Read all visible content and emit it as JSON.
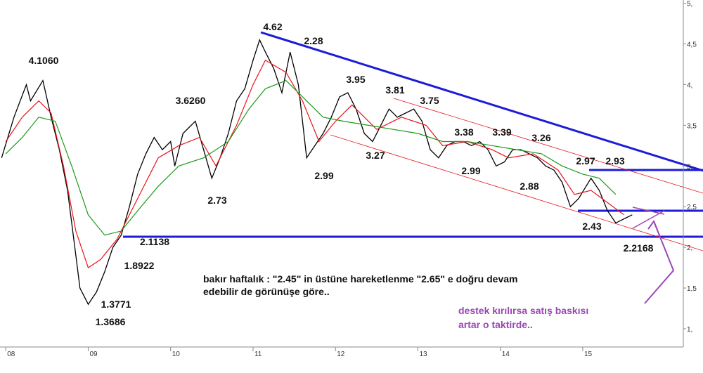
{
  "chart_data": {
    "type": "line",
    "xlim": [
      2007.93,
      2016.22
    ],
    "xticks": [
      {
        "value": 2008,
        "label": "08"
      },
      {
        "value": 2009,
        "label": "09"
      },
      {
        "value": 2010,
        "label": "10"
      },
      {
        "value": 2011,
        "label": "11"
      },
      {
        "value": 2012,
        "label": "12"
      },
      {
        "value": 2013,
        "label": "13"
      },
      {
        "value": 2014,
        "label": "14"
      },
      {
        "value": 2015,
        "label": "15"
      }
    ],
    "ylim": [
      0.775,
      5.04
    ],
    "yticks": [
      {
        "value": 1,
        "label": "1,"
      },
      {
        "value": 1.5,
        "label": "1,5"
      },
      {
        "value": 2,
        "label": "2,"
      },
      {
        "value": 2.5,
        "label": "2,5"
      },
      {
        "value": 3,
        "label": "3,"
      },
      {
        "value": 3.5,
        "label": "3,5"
      },
      {
        "value": 4,
        "label": "4,"
      },
      {
        "value": 4.5,
        "label": "4,5"
      },
      {
        "value": 5,
        "label": "5,"
      }
    ],
    "series": [
      {
        "color": "#000000",
        "x": [
          2007.95,
          2008.1,
          2008.25,
          2008.3,
          2008.45,
          2008.55,
          2008.65,
          2008.75,
          2008.85,
          2008.9,
          2008.95,
          2009.0,
          2009.1,
          2009.2,
          2009.3,
          2009.4,
          2009.5,
          2009.6,
          2009.7,
          2009.8,
          2009.9,
          2010.0,
          2010.05,
          2010.15,
          2010.3,
          2010.4,
          2010.5,
          2010.6,
          2010.7,
          2010.8,
          2010.9,
          2011.0,
          2011.08,
          2011.15,
          2011.25,
          2011.35,
          2011.45,
          2011.55,
          2011.65,
          2011.75,
          2011.85,
          2011.95,
          2012.05,
          2012.15,
          2012.25,
          2012.35,
          2012.45,
          2012.55,
          2012.65,
          2012.75,
          2012.85,
          2012.95,
          2013.05,
          2013.15,
          2013.25,
          2013.35,
          2013.45,
          2013.55,
          2013.65,
          2013.75,
          2013.85,
          2013.95,
          2014.05,
          2014.15,
          2014.25,
          2014.35,
          2014.45,
          2014.55,
          2014.65,
          2014.75,
          2014.85,
          2014.95,
          2015.1,
          2015.2,
          2015.3,
          2015.4,
          2015.5,
          2015.6
        ],
        "values": [
          3.1,
          3.6,
          4.0,
          3.8,
          4.05,
          3.6,
          3.2,
          2.7,
          1.9,
          1.5,
          1.4,
          1.3,
          1.45,
          1.7,
          2.0,
          2.15,
          2.5,
          2.9,
          3.15,
          3.35,
          3.2,
          3.3,
          3.0,
          3.4,
          3.55,
          3.2,
          2.85,
          3.1,
          3.4,
          3.8,
          3.95,
          4.3,
          4.55,
          4.4,
          4.2,
          3.9,
          4.4,
          4.0,
          3.1,
          3.25,
          3.4,
          3.6,
          3.85,
          3.9,
          3.7,
          3.4,
          3.3,
          3.5,
          3.7,
          3.6,
          3.65,
          3.7,
          3.55,
          3.2,
          3.1,
          3.25,
          3.3,
          3.3,
          3.25,
          3.3,
          3.2,
          3.0,
          3.05,
          3.2,
          3.2,
          3.15,
          3.1,
          3.0,
          2.95,
          2.8,
          2.5,
          2.6,
          2.85,
          2.7,
          2.45,
          2.3,
          2.35,
          2.4
        ]
      },
      {
        "color": "#e8141b",
        "x": [
          2008.0,
          2008.2,
          2008.4,
          2008.55,
          2008.7,
          2008.85,
          2009.0,
          2009.15,
          2009.35,
          2009.6,
          2009.85,
          2010.1,
          2010.35,
          2010.55,
          2010.8,
          2011.0,
          2011.15,
          2011.4,
          2011.6,
          2011.8,
          2012.0,
          2012.2,
          2012.5,
          2012.8,
          2013.1,
          2013.3,
          2013.6,
          2013.9,
          2014.1,
          2014.4,
          2014.7,
          2014.9,
          2015.1,
          2015.3,
          2015.5
        ],
        "values": [
          3.3,
          3.6,
          3.8,
          3.65,
          3.0,
          2.2,
          1.75,
          1.85,
          2.1,
          2.6,
          3.1,
          3.25,
          3.35,
          3.0,
          3.5,
          4.0,
          4.3,
          4.15,
          3.8,
          3.3,
          3.55,
          3.75,
          3.45,
          3.6,
          3.5,
          3.25,
          3.3,
          3.2,
          3.1,
          3.15,
          2.95,
          2.65,
          2.7,
          2.55,
          2.4
        ]
      },
      {
        "color": "#1a9a1a",
        "x": [
          2008.0,
          2008.2,
          2008.4,
          2008.6,
          2008.8,
          2009.0,
          2009.2,
          2009.4,
          2009.6,
          2009.85,
          2010.1,
          2010.4,
          2010.7,
          2010.95,
          2011.15,
          2011.4,
          2011.6,
          2011.85,
          2012.1,
          2012.4,
          2012.7,
          2013.0,
          2013.3,
          2013.6,
          2013.9,
          2014.2,
          2014.5,
          2014.75,
          2015.0,
          2015.2,
          2015.4
        ],
        "values": [
          3.15,
          3.35,
          3.6,
          3.55,
          3.0,
          2.4,
          2.15,
          2.2,
          2.45,
          2.75,
          3.0,
          3.1,
          3.3,
          3.7,
          3.95,
          4.05,
          3.85,
          3.6,
          3.55,
          3.5,
          3.45,
          3.4,
          3.3,
          3.3,
          3.25,
          3.2,
          3.15,
          3.0,
          2.9,
          2.85,
          2.65
        ]
      }
    ],
    "annotations": [
      "4.1060",
      "1.3771",
      "1.3686",
      "1.8922",
      "2.1138",
      "3.6260",
      "2.73",
      "4.62",
      "2.28",
      "2.99",
      "3.95",
      "3.27",
      "3.81",
      "3.75",
      "3.38",
      "2.99",
      "3.39",
      "2.88",
      "3.26",
      "2.97",
      "2.93",
      "2.43",
      "2.2168"
    ],
    "comment": [
      "bakır haftalık : \"2.45\" in üstüne hareketlenme \"2.65\" e doğru devam",
      "edebilir de görünüşe göre.."
    ],
    "warning": [
      "destek kırılırsa satış baskısı",
      "artar o taktirde.."
    ]
  }
}
